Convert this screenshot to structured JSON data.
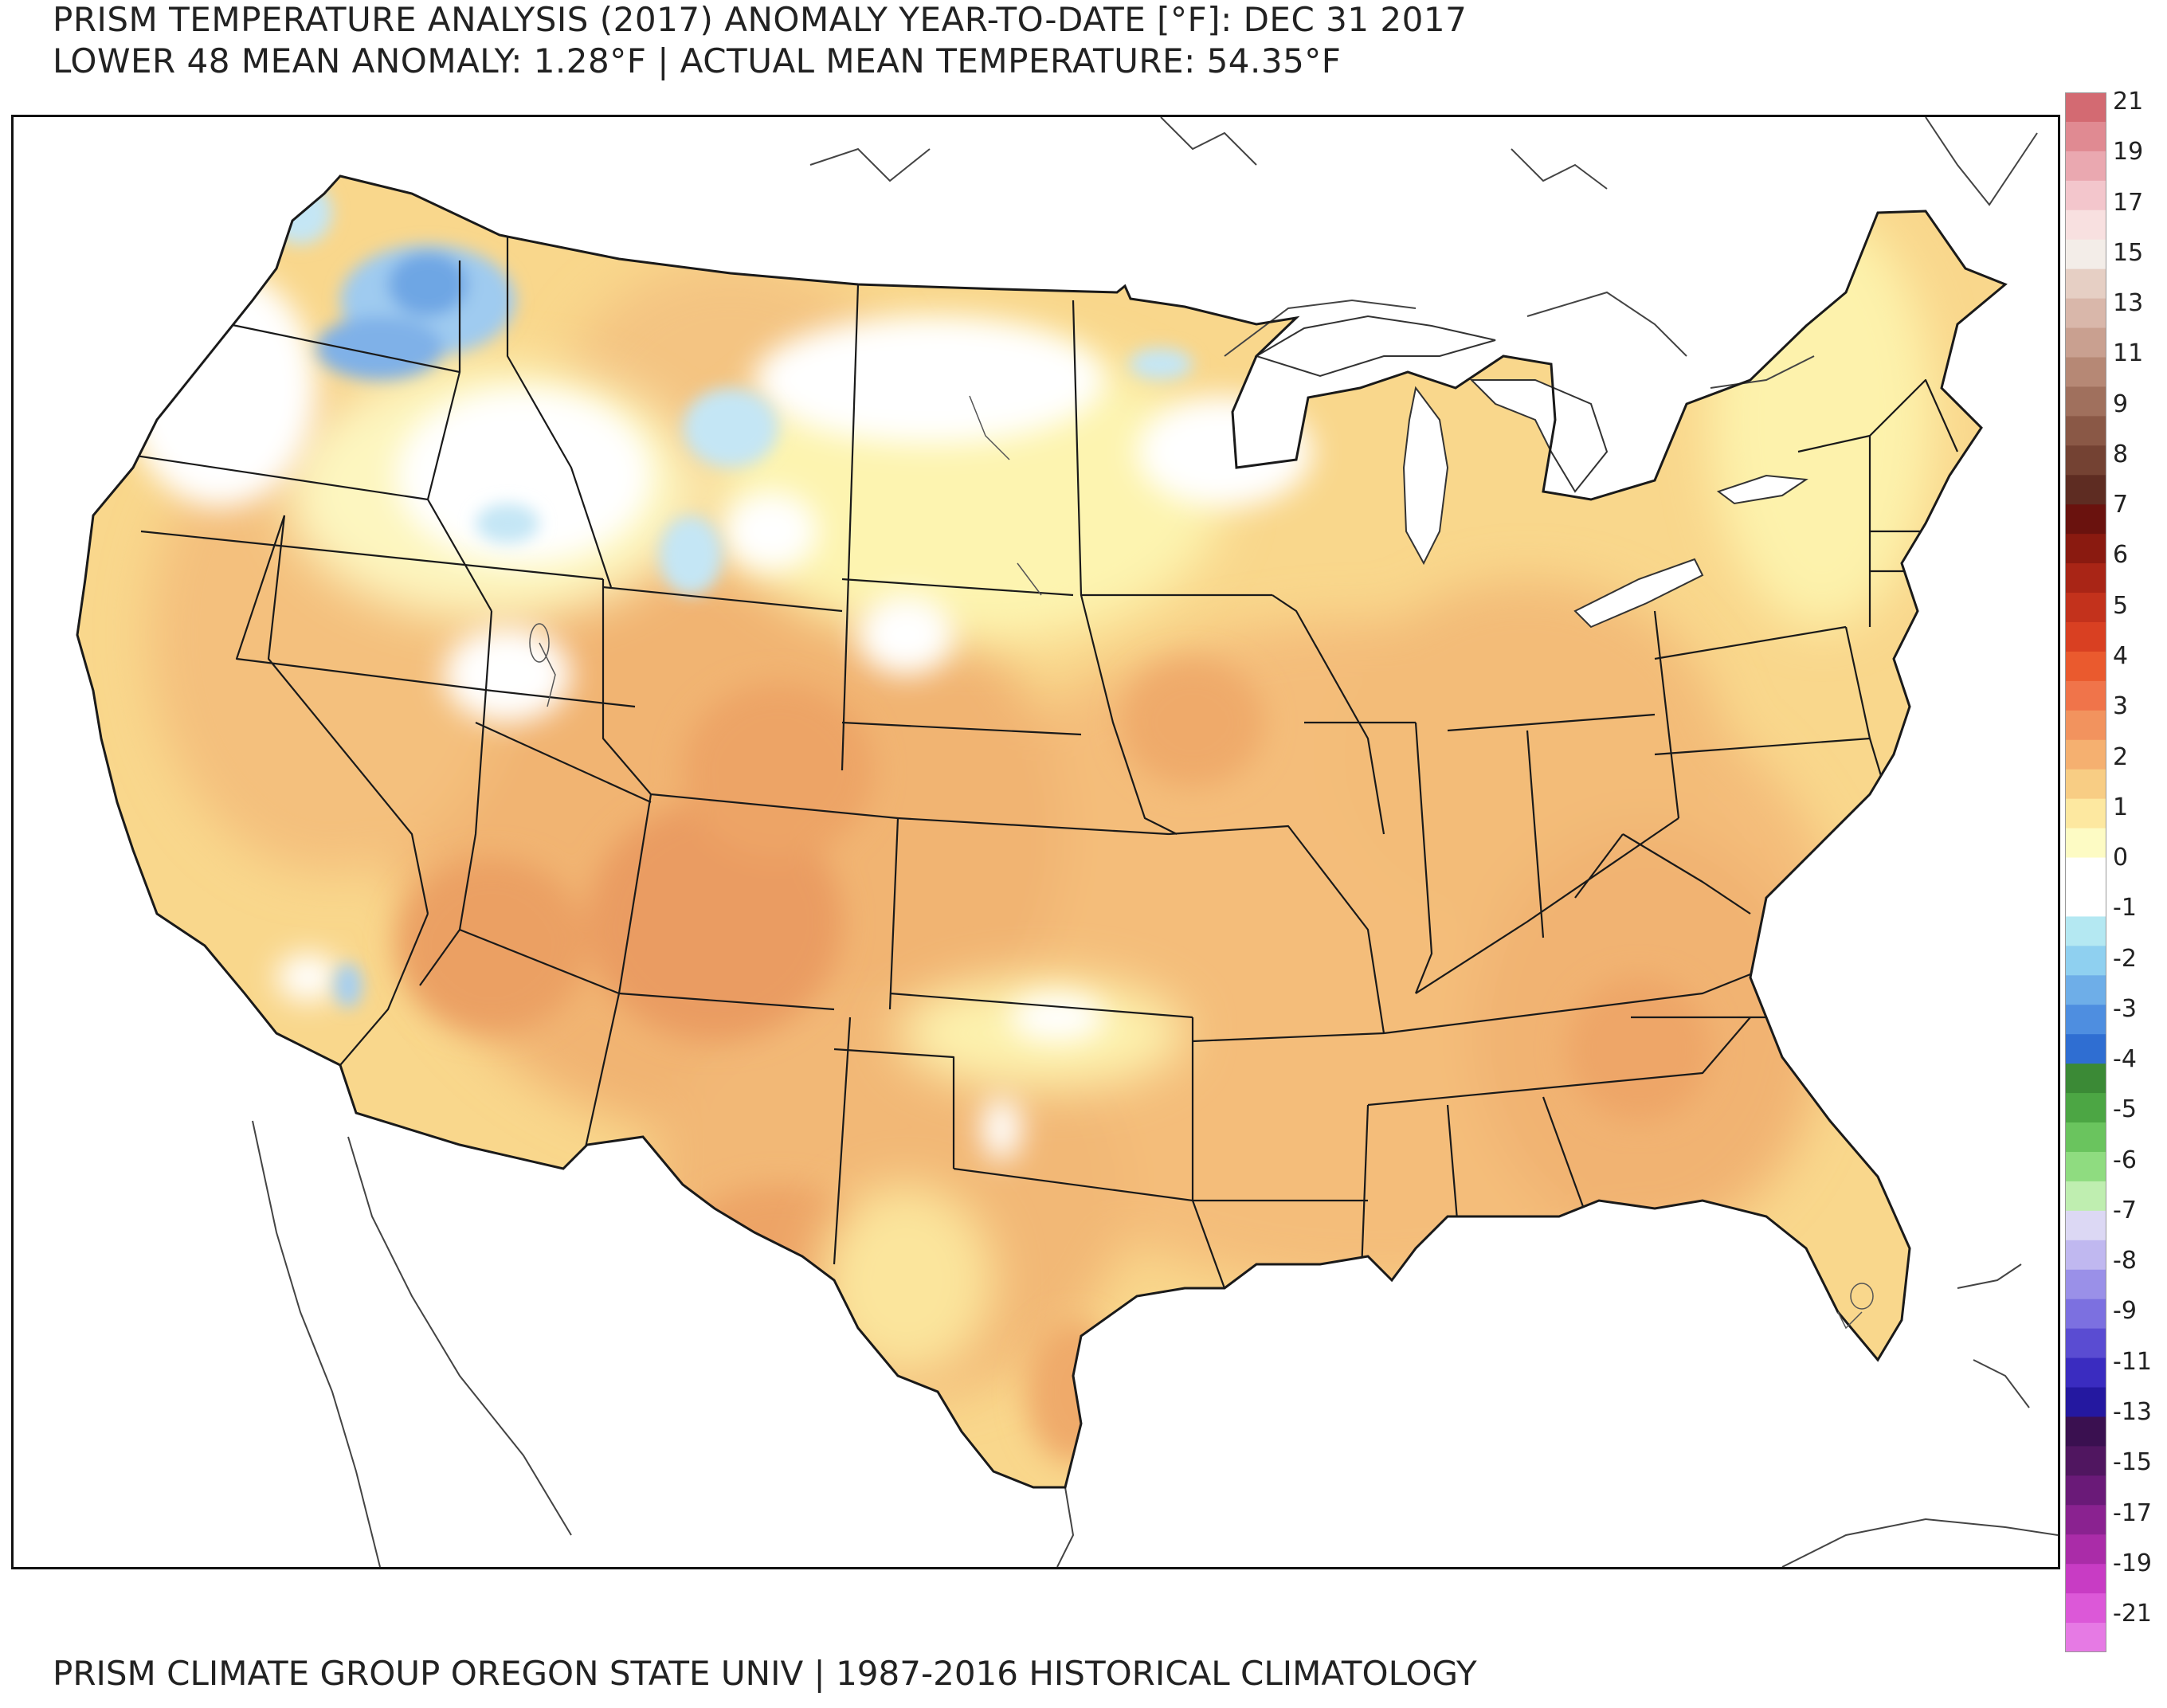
{
  "title": {
    "line1": "PRISM TEMPERATURE ANALYSIS (2017) ANOMALY YEAR-TO-DATE [°F]: DEC 31 2017",
    "line2": "LOWER 48 MEAN ANOMALY: 1.28°F | ACTUAL MEAN TEMPERATURE: 54.35°F"
  },
  "footer": "PRISM CLIMATE GROUP OREGON STATE UNIV | 1987-2016 HISTORICAL CLIMATOLOGY",
  "legend": {
    "unit": "°F",
    "labels": [
      "21",
      "19",
      "17",
      "15",
      "13",
      "11",
      "9",
      "8",
      "7",
      "6",
      "5",
      "4",
      "3",
      "2",
      "1",
      "0",
      "-1",
      "-2",
      "-3",
      "-4",
      "-5",
      "-6",
      "-7",
      "-8",
      "-9",
      "-11",
      "-13",
      "-15",
      "-17",
      "-19",
      "-21"
    ],
    "bins": [
      {
        "color": "#d36a72"
      },
      {
        "color": "#e08a92"
      },
      {
        "color": "#eaa8b0"
      },
      {
        "color": "#f3c6cc"
      },
      {
        "color": "#f8e0e0"
      },
      {
        "color": "#f3ede8"
      },
      {
        "color": "#e6cfc4"
      },
      {
        "color": "#d9b7aa"
      },
      {
        "color": "#c9a090"
      },
      {
        "color": "#b68875"
      },
      {
        "color": "#a0705d"
      },
      {
        "color": "#8a5846"
      },
      {
        "color": "#744233"
      },
      {
        "color": "#5e2c22"
      },
      {
        "color": "#6a120e"
      },
      {
        "color": "#8a1a10"
      },
      {
        "color": "#a92516"
      },
      {
        "color": "#c3321c"
      },
      {
        "color": "#d94022"
      },
      {
        "color": "#ea5a2e"
      },
      {
        "color": "#f0744a"
      },
      {
        "color": "#f2935e"
      },
      {
        "color": "#f5b070"
      },
      {
        "color": "#f8cd84"
      },
      {
        "color": "#fde8a0"
      },
      {
        "color": "#fdfbc4"
      },
      {
        "color": "#ffffff"
      },
      {
        "color": "#ffffff"
      },
      {
        "color": "#b4e8f2"
      },
      {
        "color": "#8fd0f0"
      },
      {
        "color": "#6eaee8"
      },
      {
        "color": "#4e8ee0"
      },
      {
        "color": "#2f6ed2"
      },
      {
        "color": "#3b8a36"
      },
      {
        "color": "#4ca644"
      },
      {
        "color": "#6ac45e"
      },
      {
        "color": "#8fdc80"
      },
      {
        "color": "#bfeeb0"
      },
      {
        "color": "#dcd8f4"
      },
      {
        "color": "#c0b8f0"
      },
      {
        "color": "#9a90e8"
      },
      {
        "color": "#7c70e0"
      },
      {
        "color": "#5a4cd2"
      },
      {
        "color": "#3a2cc0"
      },
      {
        "color": "#2418a0"
      },
      {
        "color": "#3a1050"
      },
      {
        "color": "#501660"
      },
      {
        "color": "#6a1a78"
      },
      {
        "color": "#8a2290"
      },
      {
        "color": "#aa2ca8"
      },
      {
        "color": "#c83cc4"
      },
      {
        "color": "#dc58d8"
      },
      {
        "color": "#e67ae4"
      }
    ]
  },
  "map": {
    "region": "Contiguous United States",
    "colors": {
      "neutral": "#fdf6b8",
      "warm1": "#f9da8e",
      "warm2": "#f3bb78",
      "warm3": "#eaa064",
      "cool1": "#c4e6f5",
      "cool2": "#a6cff0",
      "cool3": "#7fb1e8",
      "white": "#ffffff",
      "border": "#1a1a1a",
      "coast": "#333333",
      "lake": "#ffffff"
    }
  }
}
